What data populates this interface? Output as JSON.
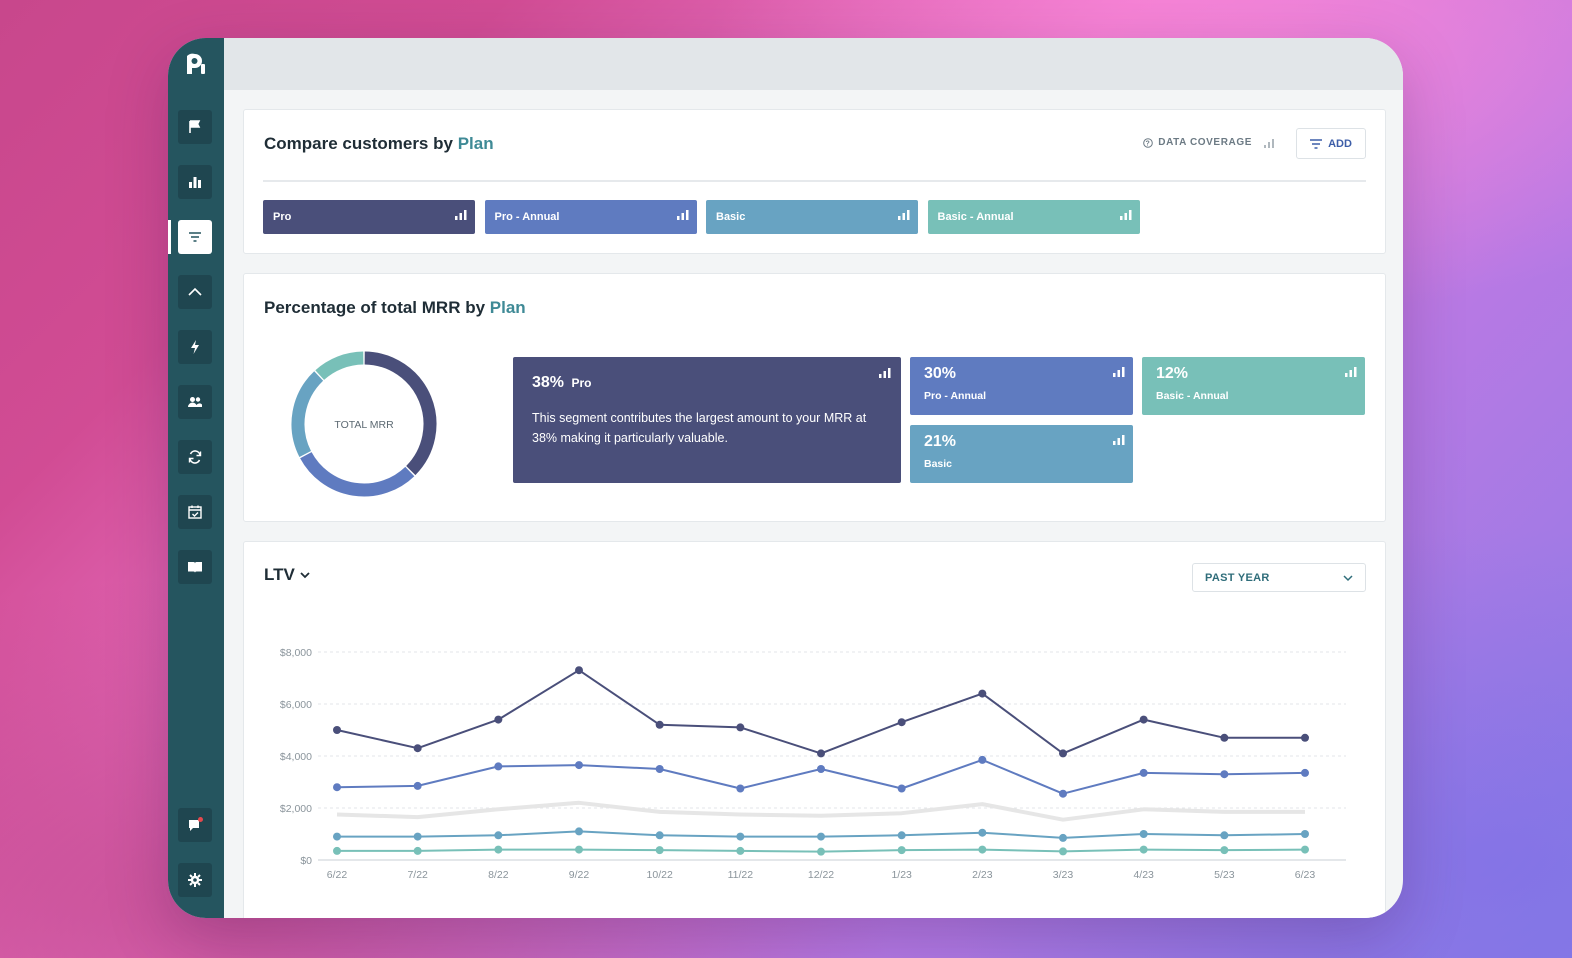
{
  "app": {
    "logo_text": "P"
  },
  "sidebar": {
    "items": [
      {
        "icon": "flag-icon"
      },
      {
        "icon": "bar-chart-icon"
      },
      {
        "icon": "filter-icon",
        "active": true
      },
      {
        "icon": "trend-icon"
      },
      {
        "icon": "lightning-icon"
      },
      {
        "icon": "users-icon"
      },
      {
        "icon": "refresh-icon"
      },
      {
        "icon": "calendar-icon"
      },
      {
        "icon": "book-icon"
      }
    ],
    "bottom": [
      {
        "icon": "chat-notification-icon"
      },
      {
        "icon": "settings-gear-icon"
      }
    ]
  },
  "compare": {
    "title_prefix": "Compare customers by",
    "title_accent": "Plan",
    "coverage_label": "DATA COVERAGE",
    "add_label": "ADD",
    "segments": [
      {
        "label": "Pro",
        "color": "#4a4f7a"
      },
      {
        "label": "Pro - Annual",
        "color": "#5f7bc0"
      },
      {
        "label": "Basic",
        "color": "#68a3c2"
      },
      {
        "label": "Basic - Annual",
        "color": "#78c0b8"
      }
    ]
  },
  "mrr": {
    "title_prefix": "Percentage of total MRR by",
    "title_accent": "Plan",
    "donut_center": "TOTAL MRR",
    "featured": {
      "pct": "38%",
      "name": "Pro",
      "description": "This segment contributes the largest amount to your MRR at 38% making it particularly valuable."
    },
    "tiles": [
      {
        "pct": "30%",
        "name": "Pro - Annual"
      },
      {
        "pct": "12%",
        "name": "Basic - Annual"
      },
      {
        "pct": "21%",
        "name": "Basic"
      }
    ]
  },
  "ltv": {
    "title": "LTV",
    "period": "PAST YEAR"
  },
  "chart_data": {
    "type": "line",
    "title": "LTV",
    "x": [
      "6/22",
      "7/22",
      "8/22",
      "9/22",
      "10/22",
      "11/22",
      "12/22",
      "1/23",
      "2/23",
      "3/23",
      "4/23",
      "5/23",
      "6/23"
    ],
    "ylim": [
      0,
      8000
    ],
    "yticks": [
      "$0",
      "$2,000",
      "$4,000",
      "$6,000",
      "$8,000"
    ],
    "grid": true,
    "series": [
      {
        "color": "#4a4f7a",
        "values": [
          5000,
          4300,
          5400,
          7300,
          5200,
          5100,
          4100,
          5300,
          6400,
          4100,
          5400,
          4700,
          4700
        ]
      },
      {
        "color": "#5f7bc0",
        "values": [
          2800,
          2850,
          3600,
          3650,
          3500,
          2750,
          3500,
          2750,
          3850,
          2550,
          3350,
          3300,
          3350
        ]
      },
      {
        "color": "#e6e6e6",
        "values": [
          1750,
          1650,
          1950,
          2200,
          1850,
          1750,
          1700,
          1800,
          2150,
          1550,
          1950,
          1850,
          1850
        ]
      },
      {
        "color": "#68a3c2",
        "values": [
          900,
          900,
          950,
          1100,
          950,
          900,
          900,
          950,
          1050,
          850,
          1000,
          950,
          1000
        ]
      },
      {
        "color": "#78c0b8",
        "values": [
          350,
          350,
          400,
          400,
          380,
          350,
          320,
          380,
          400,
          330,
          400,
          380,
          400
        ]
      }
    ]
  },
  "donut_data": {
    "slices": [
      {
        "name": "Pro",
        "value": 38,
        "color": "#4a4f7a"
      },
      {
        "name": "Pro - Annual",
        "value": 30,
        "color": "#5f7bc0"
      },
      {
        "name": "Basic",
        "value": 21,
        "color": "#68a3c2"
      },
      {
        "name": "Basic - Annual",
        "value": 12,
        "color": "#78c0b8"
      }
    ]
  }
}
